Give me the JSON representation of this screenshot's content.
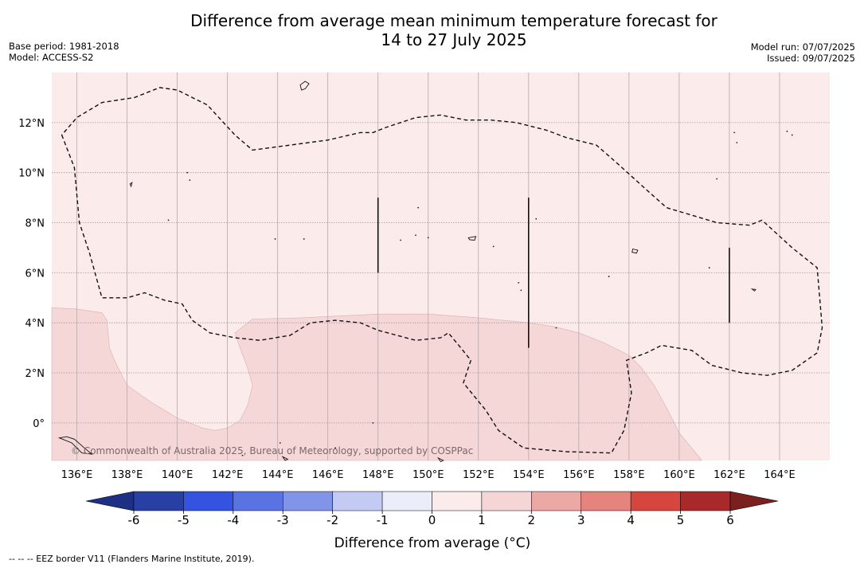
{
  "title_line1": "Difference from average mean minimum temperature forecast for",
  "title_line2": "14 to 27 July 2025",
  "base_period": "Base period: 1981-2018",
  "model": "Model: ACCESS-S2",
  "model_run": "Model run: 07/07/2025",
  "issued": "Issued: 09/07/2025",
  "copyright": "© Commonwealth of Australia 2025, Bureau of Meteorology, supported by COSPPac",
  "footnote": "--  --  -- EEZ border V11 (Flanders Marine Institute, 2019).",
  "map": {
    "lon_range": [
      135,
      166
    ],
    "lat_range": [
      -1.5,
      14.0
    ],
    "lon_ticks": [
      {
        "v": 136,
        "label": "136°E"
      },
      {
        "v": 138,
        "label": "138°E"
      },
      {
        "v": 140,
        "label": "140°E"
      },
      {
        "v": 142,
        "label": "142°E"
      },
      {
        "v": 144,
        "label": "144°E"
      },
      {
        "v": 146,
        "label": "146°E"
      },
      {
        "v": 148,
        "label": "148°E"
      },
      {
        "v": 150,
        "label": "150°E"
      },
      {
        "v": 152,
        "label": "152°E"
      },
      {
        "v": 154,
        "label": "154°E"
      },
      {
        "v": 156,
        "label": "156°E"
      },
      {
        "v": 158,
        "label": "158°E"
      },
      {
        "v": 160,
        "label": "160°E"
      },
      {
        "v": 162,
        "label": "162°E"
      },
      {
        "v": 164,
        "label": "164°E"
      }
    ],
    "lat_ticks": [
      {
        "v": 0,
        "label": "0°"
      },
      {
        "v": 2,
        "label": "2°N"
      },
      {
        "v": 4,
        "label": "4°N"
      },
      {
        "v": 6,
        "label": "6°N"
      },
      {
        "v": 8,
        "label": "8°N"
      },
      {
        "v": 10,
        "label": "10°N"
      },
      {
        "v": 12,
        "label": "12°N"
      }
    ],
    "background_class": "0 to 1",
    "regions": [
      {
        "class": "1 to 2",
        "color": "#f5d7d7",
        "points": [
          [
            135,
            4.6
          ],
          [
            136,
            4.55
          ],
          [
            137,
            4.4
          ],
          [
            137.2,
            4.1
          ],
          [
            137.3,
            3.0
          ],
          [
            137.5,
            2.5
          ],
          [
            138,
            1.5
          ],
          [
            139,
            0.8
          ],
          [
            140,
            0.2
          ],
          [
            141,
            -0.2
          ],
          [
            141.5,
            -0.3
          ],
          [
            142,
            -0.2
          ],
          [
            142.5,
            0.1
          ],
          [
            142.8,
            0.7
          ],
          [
            143,
            1.5
          ],
          [
            142.8,
            2.2
          ],
          [
            142.5,
            3.0
          ],
          [
            142.3,
            3.6
          ],
          [
            143,
            4.15
          ],
          [
            145,
            4.2
          ],
          [
            147,
            4.3
          ],
          [
            148,
            4.35
          ],
          [
            150,
            4.35
          ],
          [
            152,
            4.2
          ],
          [
            154,
            4.0
          ],
          [
            155,
            3.85
          ],
          [
            156,
            3.6
          ],
          [
            157,
            3.2
          ],
          [
            158,
            2.7
          ],
          [
            158.5,
            2.2
          ],
          [
            159,
            1.5
          ],
          [
            159.5,
            0.6
          ],
          [
            160,
            -0.4
          ],
          [
            160.5,
            -1.0
          ],
          [
            160.9,
            -1.5
          ],
          [
            135,
            -1.5
          ]
        ]
      }
    ],
    "eez": [
      {
        "closed": true,
        "points": [
          [
            135.4,
            11.5
          ],
          [
            135.9,
            10.2
          ],
          [
            136.1,
            8.0
          ],
          [
            136.5,
            6.8
          ],
          [
            137,
            5.0
          ],
          [
            138,
            5.0
          ],
          [
            138.7,
            5.2
          ],
          [
            139.5,
            4.9
          ],
          [
            140.2,
            4.75
          ],
          [
            140.6,
            4.1
          ],
          [
            141.3,
            3.6
          ],
          [
            142.3,
            3.4
          ],
          [
            143.3,
            3.3
          ],
          [
            144.5,
            3.5
          ],
          [
            145.3,
            4.0
          ],
          [
            146.3,
            4.1
          ],
          [
            147.3,
            4.0
          ],
          [
            148,
            3.7
          ],
          [
            149.5,
            3.3
          ],
          [
            150.5,
            3.4
          ],
          [
            150.8,
            3.6
          ],
          [
            151.3,
            3.0
          ],
          [
            151.7,
            2.5
          ],
          [
            151.4,
            1.6
          ],
          [
            152.3,
            0.5
          ],
          [
            152.8,
            -0.3
          ],
          [
            153.8,
            -1.0
          ],
          [
            155.5,
            -1.15
          ],
          [
            157.3,
            -1.2
          ],
          [
            157.8,
            -0.3
          ],
          [
            158.1,
            1.2
          ],
          [
            157.9,
            2.5
          ],
          [
            158.7,
            2.8
          ],
          [
            159.3,
            3.1
          ],
          [
            160.5,
            2.9
          ],
          [
            161.3,
            2.3
          ],
          [
            162.5,
            2.0
          ],
          [
            163.5,
            1.9
          ],
          [
            164.5,
            2.1
          ],
          [
            165.5,
            2.8
          ],
          [
            165.7,
            3.8
          ],
          [
            165.5,
            6.2
          ],
          [
            164.5,
            7.0
          ],
          [
            163.3,
            8.1
          ],
          [
            162.8,
            7.9
          ],
          [
            161.5,
            8.0
          ],
          [
            160.5,
            8.3
          ],
          [
            159.5,
            8.6
          ],
          [
            158.6,
            9.4
          ],
          [
            157.5,
            10.4
          ],
          [
            156.7,
            11.1
          ],
          [
            155.5,
            11.4
          ],
          [
            154.7,
            11.7
          ],
          [
            153.5,
            12.0
          ],
          [
            152.5,
            12.1
          ],
          [
            151.5,
            12.1
          ],
          [
            150.5,
            12.3
          ],
          [
            149.5,
            12.2
          ],
          [
            148.3,
            11.8
          ],
          [
            147.8,
            11.6
          ],
          [
            147.3,
            11.6
          ],
          [
            146,
            11.3
          ],
          [
            144.5,
            11.1
          ],
          [
            143,
            10.9
          ],
          [
            142.3,
            11.5
          ],
          [
            141.2,
            12.7
          ],
          [
            140,
            13.3
          ],
          [
            139.3,
            13.4
          ],
          [
            138.3,
            13.0
          ],
          [
            137,
            12.8
          ],
          [
            136,
            12.2
          ],
          [
            135.4,
            11.5
          ]
        ]
      }
    ],
    "eez_segments": [
      [
        [
          148,
          9.0
        ],
        [
          148,
          6.0
        ]
      ],
      [
        [
          154,
          9.0
        ],
        [
          154,
          3.0
        ]
      ],
      [
        [
          162,
          7.0
        ],
        [
          162,
          4.0
        ]
      ]
    ],
    "islands": [
      [
        [
          144.9,
          13.5
        ],
        [
          145.1,
          13.65
        ],
        [
          145.25,
          13.55
        ],
        [
          145.1,
          13.35
        ],
        [
          144.95,
          13.3
        ]
      ],
      [
        [
          138.12,
          9.55
        ],
        [
          138.2,
          9.6
        ],
        [
          138.16,
          9.45
        ]
      ],
      [
        [
          151.6,
          7.4
        ],
        [
          151.9,
          7.45
        ],
        [
          151.85,
          7.3
        ],
        [
          151.65,
          7.32
        ]
      ],
      [
        [
          158.15,
          6.95
        ],
        [
          158.35,
          6.9
        ],
        [
          158.3,
          6.78
        ],
        [
          158.12,
          6.82
        ]
      ],
      [
        [
          162.9,
          5.35
        ],
        [
          163.05,
          5.33
        ],
        [
          163.0,
          5.27
        ]
      ],
      [
        [
          135.3,
          -0.6
        ],
        [
          135.8,
          -0.8
        ],
        [
          136.2,
          -1.2
        ],
        [
          136.6,
          -1.25
        ],
        [
          136.3,
          -1.0
        ],
        [
          135.9,
          -0.65
        ],
        [
          135.6,
          -0.55
        ]
      ],
      [
        [
          144.2,
          -1.35
        ],
        [
          144.4,
          -1.45
        ],
        [
          144.3,
          -1.5
        ]
      ],
      [
        [
          150.4,
          -1.4
        ],
        [
          150.6,
          -1.5
        ],
        [
          150.5,
          -1.55
        ]
      ]
    ],
    "dots": [
      [
        140.4,
        10.0
      ],
      [
        140.5,
        9.7
      ],
      [
        139.65,
        8.1
      ],
      [
        143.9,
        7.35
      ],
      [
        145.05,
        7.35
      ],
      [
        148.9,
        7.3
      ],
      [
        149.5,
        7.5
      ],
      [
        150,
        7.4
      ],
      [
        149.6,
        8.6
      ],
      [
        152.6,
        7.05
      ],
      [
        154.3,
        8.15
      ],
      [
        153.6,
        5.6
      ],
      [
        153.7,
        5.3
      ],
      [
        157.2,
        5.85
      ],
      [
        155.1,
        3.8
      ],
      [
        161.2,
        6.2
      ],
      [
        161.5,
        9.75
      ],
      [
        162.2,
        11.6
      ],
      [
        162.3,
        11.2
      ],
      [
        164.3,
        11.65
      ],
      [
        164.5,
        11.5
      ],
      [
        142.6,
        -1.3
      ],
      [
        147.8,
        0.0
      ],
      [
        146.3,
        -1.0
      ],
      [
        144.1,
        -0.8
      ]
    ]
  },
  "colorbar": {
    "ticks": [
      "-6",
      "-5",
      "-4",
      "-3",
      "-2",
      "-1",
      "0",
      "1",
      "2",
      "3",
      "4",
      "5",
      "6"
    ],
    "colors": [
      "#283fa4",
      "#3353e0",
      "#5a73e3",
      "#8194e7",
      "#c3cbf4",
      "#ebedfb",
      "#fcebeb",
      "#f5d5d5",
      "#eca8a4",
      "#e5837d",
      "#d7463e",
      "#a9282a"
    ],
    "under_color": "#1e2f86",
    "over_color": "#7b1f1f",
    "label": "Difference from average (°C)"
  }
}
